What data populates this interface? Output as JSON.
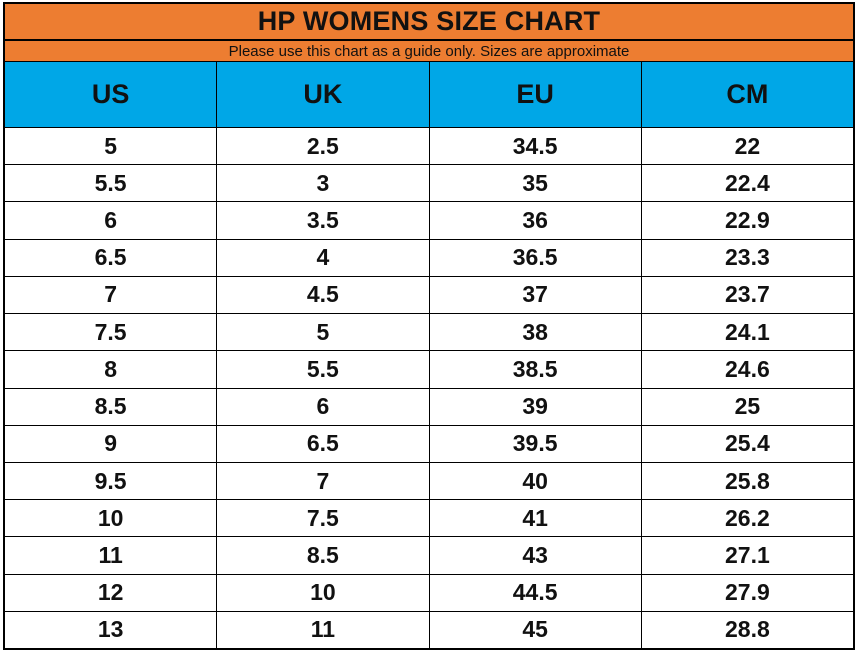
{
  "header": {
    "title": "HP WOMENS SIZE CHART",
    "subtitle": "Please use this chart as a guide only. Sizes are approximate"
  },
  "colors": {
    "orange": "#ED7D31",
    "blue": "#00A7E7",
    "border": "#000000",
    "row_bg": "#FFFFFF",
    "text": "#111111"
  },
  "chart_data": {
    "type": "table",
    "title": "HP WOMENS SIZE CHART",
    "subtitle": "Please use this chart as a guide only. Sizes are approximate",
    "columns": [
      "US",
      "UK",
      "EU",
      "CM"
    ],
    "rows": [
      [
        "5",
        "2.5",
        "34.5",
        "22"
      ],
      [
        "5.5",
        "3",
        "35",
        "22.4"
      ],
      [
        "6",
        "3.5",
        "36",
        "22.9"
      ],
      [
        "6.5",
        "4",
        "36.5",
        "23.3"
      ],
      [
        "7",
        "4.5",
        "37",
        "23.7"
      ],
      [
        "7.5",
        "5",
        "38",
        "24.1"
      ],
      [
        "8",
        "5.5",
        "38.5",
        "24.6"
      ],
      [
        "8.5",
        "6",
        "39",
        "25"
      ],
      [
        "9",
        "6.5",
        "39.5",
        "25.4"
      ],
      [
        "9.5",
        "7",
        "40",
        "25.8"
      ],
      [
        "10",
        "7.5",
        "41",
        "26.2"
      ],
      [
        "11",
        "8.5",
        "43",
        "27.1"
      ],
      [
        "12",
        "10",
        "44.5",
        "27.9"
      ],
      [
        "13",
        "11",
        "45",
        "28.8"
      ]
    ]
  }
}
